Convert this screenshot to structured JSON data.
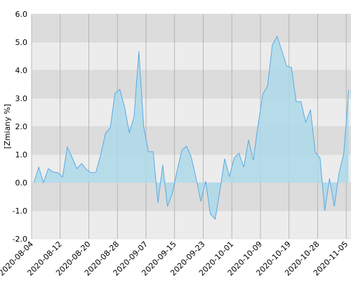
{
  "chart_data": {
    "type": "area",
    "y_label": "[Zmiany %]",
    "categories": [
      "2020-08-04",
      null,
      null,
      null,
      null,
      null,
      "2020-08-12",
      null,
      null,
      null,
      null,
      null,
      "2020-08-20",
      null,
      null,
      null,
      null,
      null,
      "2020-08-28",
      null,
      null,
      null,
      null,
      null,
      "2020-09-07",
      null,
      null,
      null,
      null,
      null,
      "2020-09-15",
      null,
      null,
      null,
      null,
      null,
      "2020-09-23",
      null,
      null,
      null,
      null,
      null,
      "2020-10-01",
      null,
      null,
      null,
      null,
      null,
      "2020-10-09",
      null,
      null,
      null,
      null,
      null,
      "2020-10-19",
      null,
      null,
      null,
      null,
      null,
      "2020-10-28",
      null,
      null,
      null,
      null,
      null,
      "2020-11-05"
    ],
    "values": [
      0,
      0.55,
      0,
      0.5,
      0.38,
      0.35,
      0.2,
      1.27,
      0.9,
      0.5,
      0.68,
      0.47,
      0.35,
      0.37,
      1.0,
      1.75,
      1.95,
      3.18,
      3.32,
      2.7,
      1.77,
      2.35,
      4.68,
      2.0,
      1.1,
      1.1,
      -0.72,
      0.63,
      -0.85,
      -0.4,
      0.4,
      1.15,
      1.3,
      0.9,
      0.15,
      -0.67,
      0.05,
      -1.12,
      -1.3,
      -0.3,
      0.85,
      0.22,
      0.88,
      1.05,
      0.55,
      1.52,
      0.8,
      2.05,
      3.15,
      3.45,
      4.9,
      5.2,
      4.7,
      4.15,
      4.1,
      2.88,
      2.88,
      2.15,
      2.6,
      1.08,
      0.88,
      -1.0,
      0.15,
      -0.85,
      0.35,
      1.05,
      3.3
    ],
    "color": "#5aaae0",
    "fill": "#add9ea",
    "ylim": [
      -2,
      6
    ],
    "yticks": [
      {
        "value": -2,
        "label": "-2.0"
      },
      {
        "value": -1,
        "label": "-1.0"
      },
      {
        "value": 0,
        "label": "0.0"
      },
      {
        "value": 1,
        "label": "1.0"
      },
      {
        "value": 2,
        "label": "2.0"
      },
      {
        "value": 3,
        "label": "3.0"
      },
      {
        "value": 4,
        "label": "4.0"
      },
      {
        "value": 5,
        "label": "5.0"
      },
      {
        "value": 6,
        "label": "6.0"
      }
    ],
    "stripe_colors": [
      "#ececec",
      "#dcdcdc"
    ],
    "grid": true
  }
}
